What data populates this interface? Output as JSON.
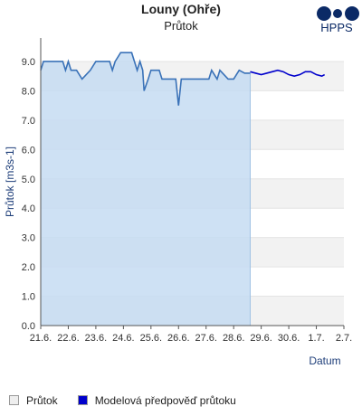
{
  "chart_data": {
    "type": "line",
    "title": "Louny (Ohře)",
    "subtitle": "Průtok",
    "logo": "HPPS",
    "y_label": "Průtok [m3s-1]",
    "x_label": "Datum",
    "xlim": [
      0,
      11
    ],
    "xticks": [
      {
        "value": 0,
        "label": "21.6."
      },
      {
        "value": 1,
        "label": "22.6."
      },
      {
        "value": 2,
        "label": "23.6."
      },
      {
        "value": 3,
        "label": "24.6."
      },
      {
        "value": 4,
        "label": "25.6."
      },
      {
        "value": 5,
        "label": "26.6."
      },
      {
        "value": 6,
        "label": "27.6."
      },
      {
        "value": 7,
        "label": "28.6."
      },
      {
        "value": 8,
        "label": "29.6."
      },
      {
        "value": 9,
        "label": "30.6."
      },
      {
        "value": 10,
        "label": "1.7."
      },
      {
        "value": 11,
        "label": "2.7."
      }
    ],
    "ylim": [
      0,
      9.8
    ],
    "yticks": [
      {
        "value": 0,
        "label": "0.0"
      },
      {
        "value": 1,
        "label": "1.0"
      },
      {
        "value": 2,
        "label": "2.0"
      },
      {
        "value": 3,
        "label": "3.0"
      },
      {
        "value": 4,
        "label": "4.0"
      },
      {
        "value": 5,
        "label": "5.0"
      },
      {
        "value": 6,
        "label": "6.0"
      },
      {
        "value": 7,
        "label": "7.0"
      },
      {
        "value": 8,
        "label": "8.0"
      },
      {
        "value": 9,
        "label": "9.0"
      }
    ],
    "series": [
      {
        "name": "Průtok",
        "color": "#3a72b8",
        "fill": "#c5dcf2",
        "area": true,
        "x": [
          0,
          0.1,
          0.4,
          0.8,
          0.9,
          1.0,
          1.1,
          1.3,
          1.5,
          1.8,
          2.0,
          2.5,
          2.6,
          2.7,
          2.9,
          3.3,
          3.4,
          3.5,
          3.6,
          3.7,
          3.75,
          3.9,
          4.0,
          4.3,
          4.4,
          4.9,
          5.0,
          5.1,
          5.3,
          5.6,
          5.9,
          6.1,
          6.2,
          6.4,
          6.5,
          6.8,
          7.0,
          7.2,
          7.4,
          7.6
        ],
        "values": [
          8.7,
          9.0,
          9.0,
          9.0,
          8.7,
          9.0,
          8.7,
          8.7,
          8.4,
          8.7,
          9.0,
          9.0,
          8.7,
          9.0,
          9.3,
          9.3,
          9.0,
          8.7,
          9.0,
          8.7,
          8.0,
          8.4,
          8.7,
          8.7,
          8.4,
          8.4,
          7.5,
          8.4,
          8.4,
          8.4,
          8.4,
          8.4,
          8.7,
          8.4,
          8.7,
          8.4,
          8.4,
          8.7,
          8.6,
          8.6
        ]
      },
      {
        "name": "Modelová předpověď průtoku",
        "color": "#0000cc",
        "area": false,
        "x": [
          7.6,
          7.8,
          8.0,
          8.2,
          8.4,
          8.6,
          8.8,
          9.0,
          9.2,
          9.4,
          9.6,
          9.8,
          10.0,
          10.2,
          10.3
        ],
        "values": [
          8.65,
          8.6,
          8.55,
          8.6,
          8.65,
          8.7,
          8.65,
          8.55,
          8.5,
          8.55,
          8.65,
          8.65,
          8.55,
          8.5,
          8.55
        ]
      }
    ]
  }
}
